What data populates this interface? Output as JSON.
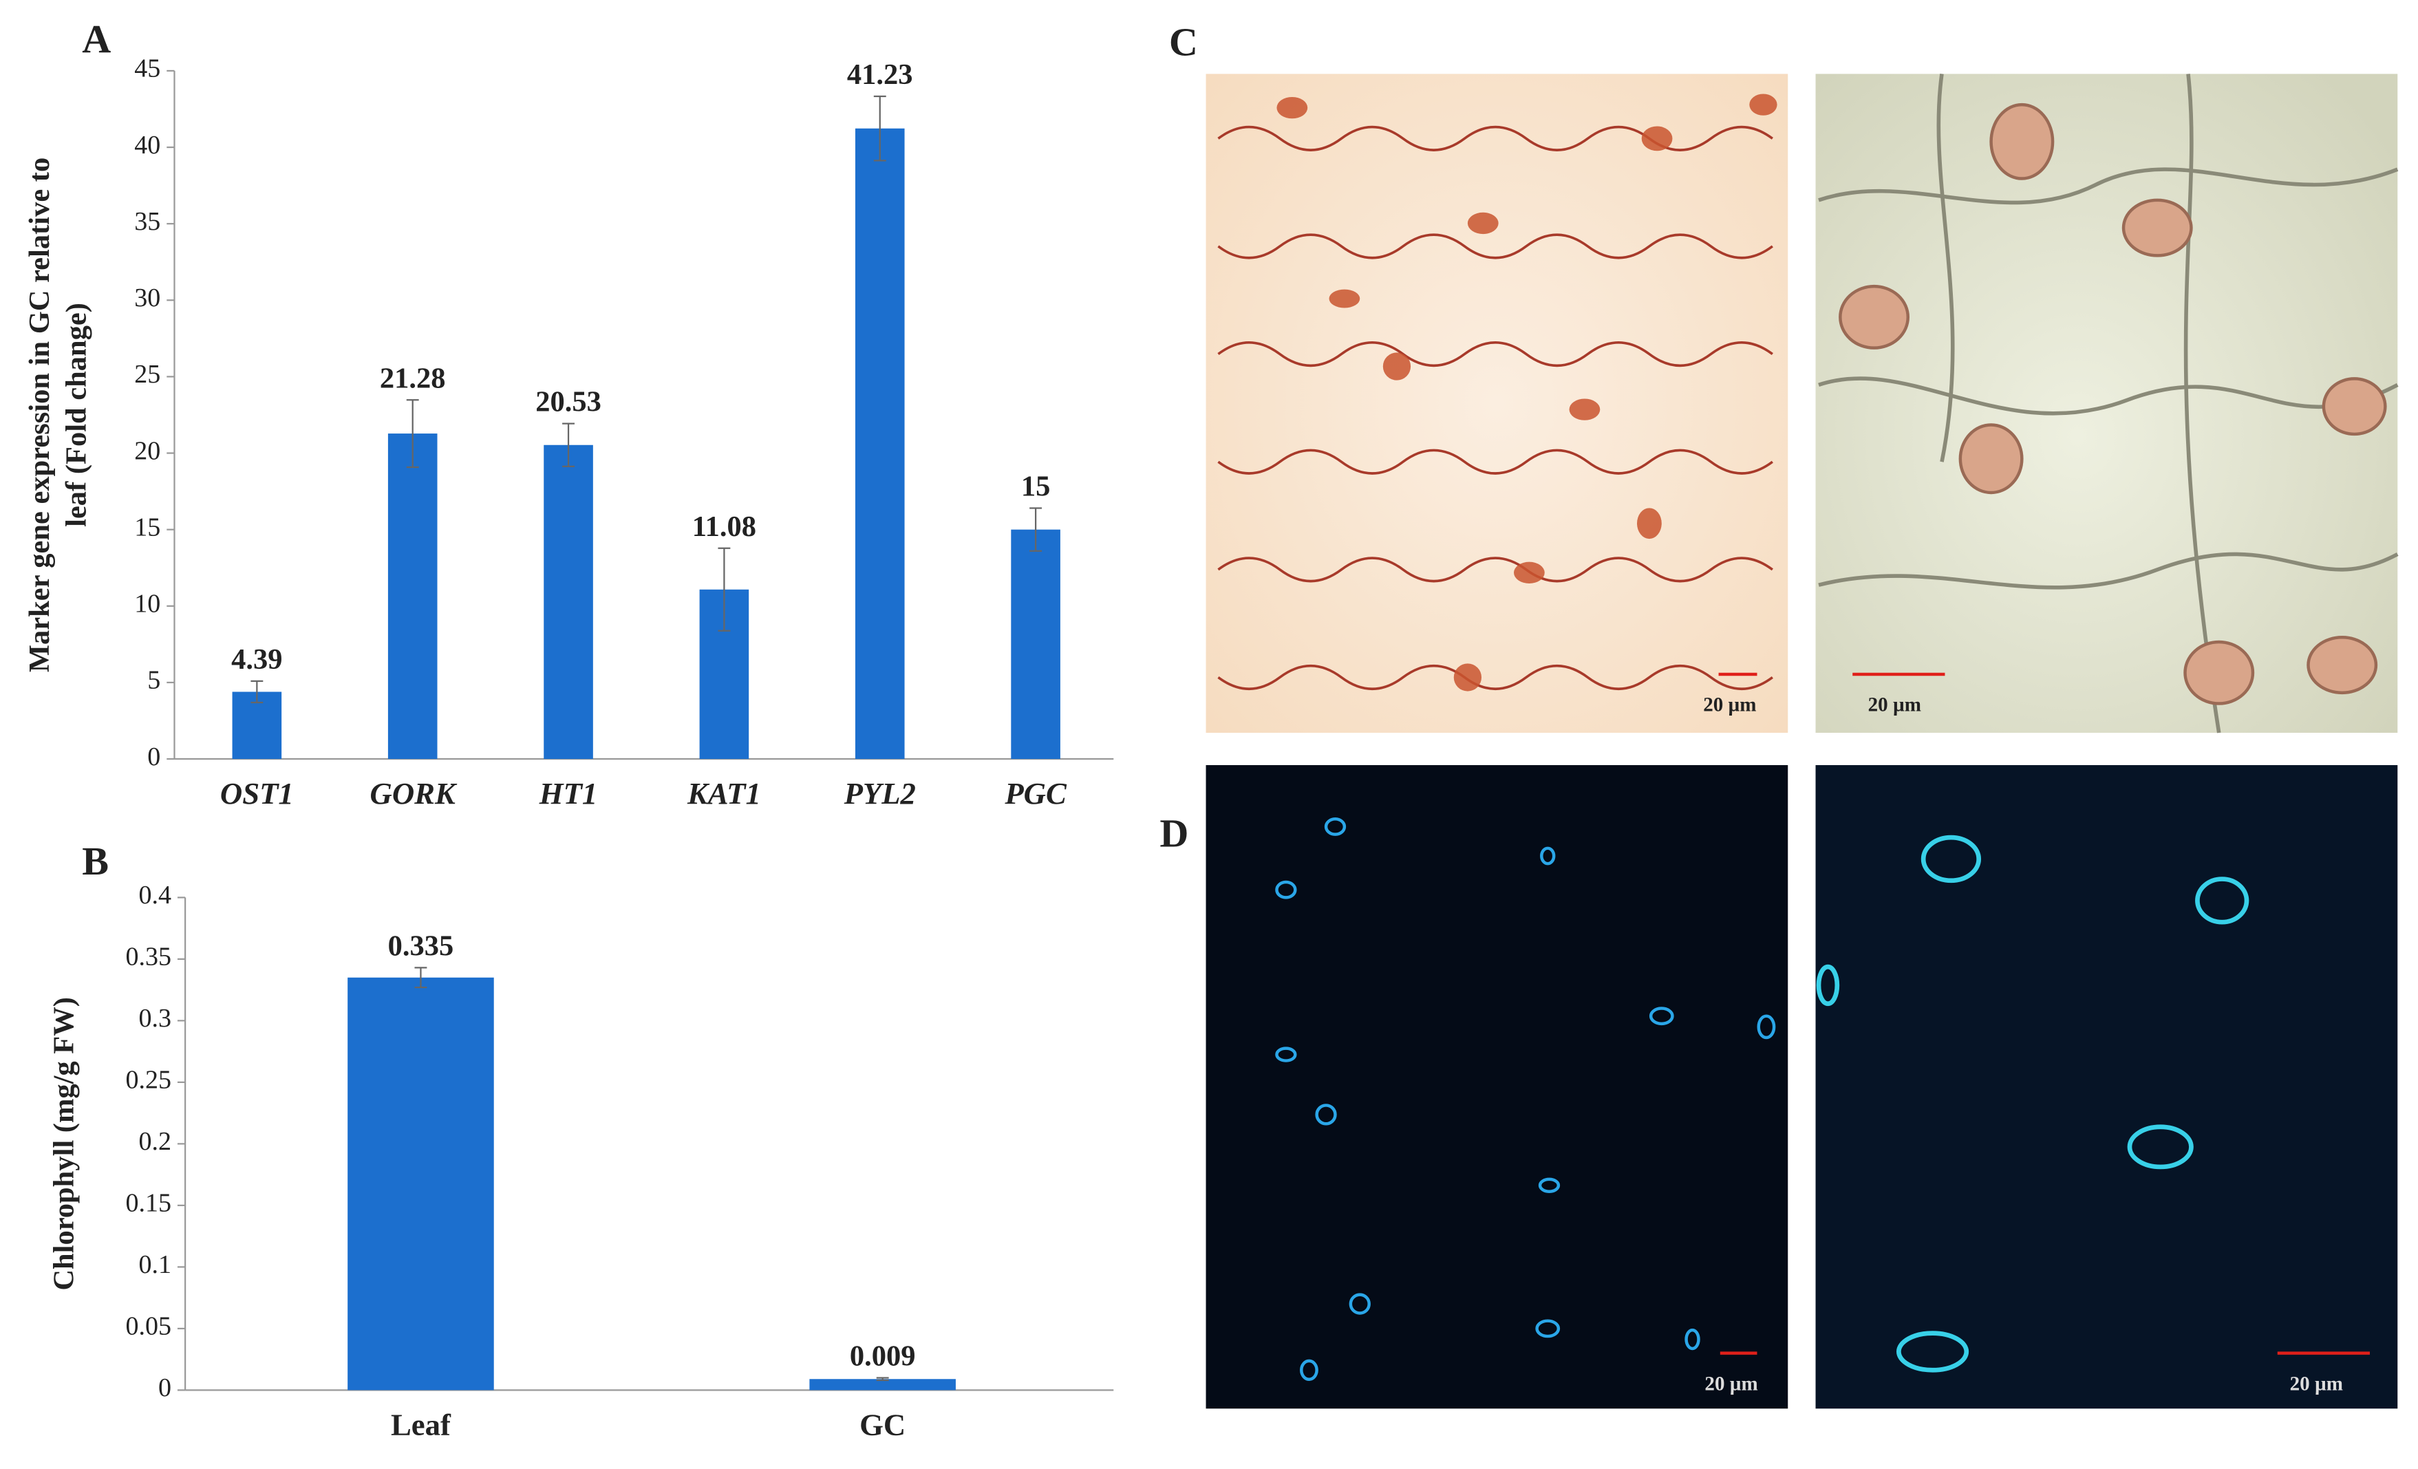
{
  "chart_data": [
    {
      "type": "bar",
      "panel": "A",
      "ylabel": [
        "Marker gene expression in GC relative to",
        "leaf (Fold  change)"
      ],
      "categories": [
        "OST1",
        "GORK",
        "HT1",
        "KAT1",
        "PYL2",
        "PGC"
      ],
      "values": [
        4.39,
        21.28,
        20.53,
        11.08,
        41.23,
        15
      ],
      "errors": [
        0.7,
        2.2,
        1.4,
        2.7,
        2.1,
        1.4
      ],
      "color": "#1c6fce",
      "italic_categories": true,
      "ylim": [
        0,
        45
      ],
      "yticks": [
        0,
        5,
        10,
        15,
        20,
        25,
        30,
        35,
        40,
        45
      ],
      "grid": false
    },
    {
      "type": "bar",
      "panel": "B",
      "ylabel": [
        "Chlorophyll (mg/g FW)"
      ],
      "categories": [
        "Leaf",
        "GC"
      ],
      "values": [
        0.335,
        0.009
      ],
      "errors": [
        0.008,
        0.001
      ],
      "color": "#1c6fce",
      "italic_categories": false,
      "ylim": [
        0,
        0.4
      ],
      "yticks": [
        0,
        0.05,
        0.1,
        0.15,
        0.2,
        0.25,
        0.3,
        0.35,
        0.4
      ],
      "grid": false
    }
  ],
  "images": {
    "panel_c": "C",
    "panel_d": "D",
    "scale_bars": [
      "20 µm",
      "20 µm",
      "20 µm",
      "20 µm"
    ]
  }
}
